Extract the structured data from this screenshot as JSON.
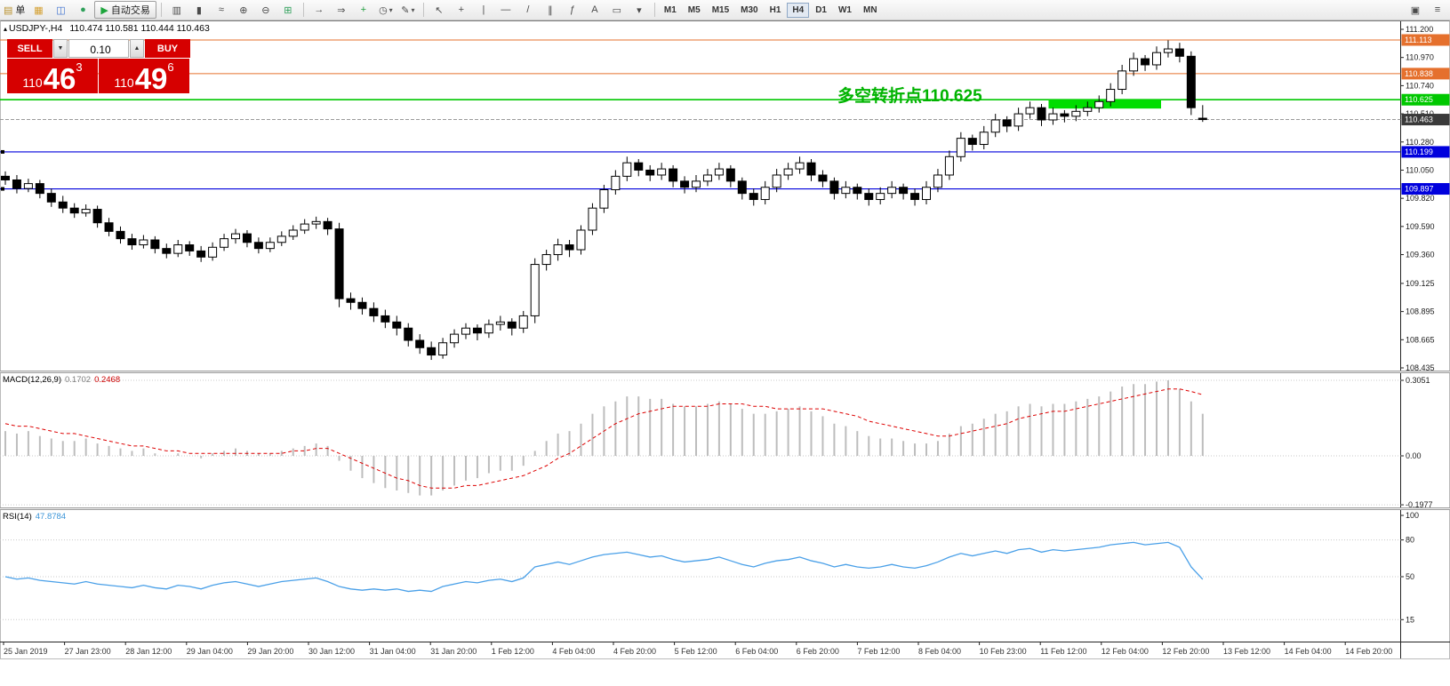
{
  "colors": {
    "panel_red": "#d60000",
    "annotation_green": "#00b300",
    "level_orange": "#e5702d",
    "level_green": "#00c800",
    "level_blue": "#0000dd",
    "current_badge": "#3a3a3a",
    "macd_hist": "#bdbdbd",
    "macd_signal": "#dd0000",
    "rsi_line": "#4aa0e8",
    "bull": "#ffffff",
    "bear": "#000000",
    "highlight": "#00dd00"
  },
  "icons": {
    "chart_marker": "▴",
    "vol_up": "▲",
    "vol_down": "▼",
    "dropdown": "▾"
  },
  "toolbar": {
    "items": [
      {
        "name": "new-order",
        "icon": "▤",
        "icon_color": "#b8902c",
        "label": "单"
      },
      {
        "name": "new-chart",
        "icon": "▦",
        "icon_color": "#d49f2f"
      },
      {
        "name": "profiles",
        "icon": "◫",
        "icon_color": "#3b6fd0"
      },
      {
        "name": "community",
        "icon": "●",
        "icon_color": "#2fa05a"
      },
      {
        "name": "autotrade",
        "icon": "▶",
        "icon_color": "#1da53c",
        "label": "自动交易",
        "style": "raised"
      },
      {
        "sep": true
      },
      {
        "name": "bar-chart",
        "icon": "▥"
      },
      {
        "name": "candlestick-chart",
        "icon": "▮"
      },
      {
        "name": "line-chart",
        "icon": "≈"
      },
      {
        "name": "zoom-in",
        "icon": "⊕"
      },
      {
        "name": "zoom-out",
        "icon": "⊖"
      },
      {
        "name": "tile-windows",
        "icon": "⊞",
        "icon_color": "#2fa05a"
      },
      {
        "sep": true
      },
      {
        "name": "auto-scroll",
        "icon": "→"
      },
      {
        "name": "chart-shift",
        "icon": "⇒"
      },
      {
        "name": "indicators",
        "icon": "+",
        "icon_color": "#1f9e3d"
      },
      {
        "name": "periods",
        "icon": "◷",
        "dropdown": true
      },
      {
        "name": "templates",
        "icon": "✎",
        "dropdown": true
      },
      {
        "sep": true
      },
      {
        "name": "cursor",
        "icon": "↖"
      },
      {
        "name": "crosshair",
        "icon": "+"
      },
      {
        "name": "vertical-line",
        "icon": "|"
      },
      {
        "name": "horizontal-line",
        "icon": "—"
      },
      {
        "name": "trendline",
        "icon": "/"
      },
      {
        "name": "channel",
        "icon": "∥"
      },
      {
        "name": "fibonacci",
        "icon": "ƒ"
      },
      {
        "name": "text",
        "icon": "A"
      },
      {
        "name": "label",
        "icon": "▭"
      },
      {
        "name": "shapes",
        "icon": "▾"
      },
      {
        "sep": true
      }
    ],
    "timeframes": [
      "M1",
      "M5",
      "M15",
      "M30",
      "H1",
      "H4",
      "D1",
      "W1",
      "MN"
    ],
    "active_timeframe": "H4",
    "right_items": [
      {
        "name": "dock",
        "icon": "▣"
      },
      {
        "name": "menu",
        "icon": "≡"
      }
    ]
  },
  "trade_panel": {
    "sell_label": "SELL",
    "buy_label": "BUY",
    "volume": "0.10",
    "bid_main": "110",
    "bid_big": "46",
    "bid_pip": "3",
    "ask_main": "110",
    "ask_big": "49",
    "ask_pip": "6"
  },
  "chart": {
    "symbol_title": "USDJPY-,H4",
    "ohlc": "110.474 110.581 110.444 110.463",
    "annotation_text": "多空转折点110.625"
  },
  "chart_data": {
    "type": "candlestick",
    "symbol": "USDJPY-",
    "timeframe": "H4",
    "current_ohlc": {
      "open": "110.474",
      "high": "110.581",
      "low": "110.444",
      "close": "110.463"
    },
    "price_range": [
      108.435,
      111.2
    ],
    "price_axis_labels": [
      "111.200",
      "110.970",
      "110.740",
      "110.510",
      "110.280",
      "110.050",
      "109.820",
      "109.590",
      "109.360",
      "109.125",
      "108.895",
      "108.665",
      "108.435"
    ],
    "time_axis_labels": [
      "25 Jan 2019",
      "27 Jan 23:00",
      "28 Jan 12:00",
      "29 Jan 04:00",
      "29 Jan 20:00",
      "30 Jan 12:00",
      "31 Jan 04:00",
      "31 Jan 20:00",
      "1 Feb 12:00",
      "4 Feb 04:00",
      "4 Feb 20:00",
      "5 Feb 12:00",
      "6 Feb 04:00",
      "6 Feb 20:00",
      "7 Feb 12:00",
      "8 Feb 04:00",
      "10 Feb 23:00",
      "11 Feb 12:00",
      "12 Feb 04:00",
      "12 Feb 20:00",
      "13 Feb 12:00",
      "14 Feb 04:00",
      "14 Feb 20:00"
    ],
    "levels": [
      {
        "label": "111.113",
        "price": 111.113,
        "color": "#e5702d",
        "handle": false
      },
      {
        "label": "110.838",
        "price": 110.838,
        "color": "#e5702d",
        "handle": false
      },
      {
        "label": "110.625",
        "price": 110.625,
        "color": "#00c800",
        "handle": false
      },
      {
        "label": "110.199",
        "price": 110.199,
        "color": "#0000dd",
        "handle": true
      },
      {
        "label": "109.897",
        "price": 109.897,
        "color": "#0000dd",
        "handle": true
      }
    ],
    "current_price": {
      "label": "110.463",
      "price": 110.463
    },
    "highlight_rect": {
      "start_index": 91,
      "end_index": 100,
      "price_top": 110.625,
      "price_bottom": 110.553
    },
    "candles": [
      [
        110.0,
        110.04,
        109.93,
        109.97
      ],
      [
        109.97,
        110.01,
        109.86,
        109.9
      ],
      [
        109.9,
        109.98,
        109.87,
        109.94
      ],
      [
        109.94,
        109.97,
        109.82,
        109.86
      ],
      [
        109.86,
        109.9,
        109.75,
        109.79
      ],
      [
        109.79,
        109.84,
        109.7,
        109.74
      ],
      [
        109.74,
        109.78,
        109.66,
        109.7
      ],
      [
        109.7,
        109.77,
        109.67,
        109.73
      ],
      [
        109.73,
        109.76,
        109.58,
        109.62
      ],
      [
        109.62,
        109.66,
        109.51,
        109.55
      ],
      [
        109.55,
        109.59,
        109.45,
        109.49
      ],
      [
        109.49,
        109.53,
        109.4,
        109.44
      ],
      [
        109.44,
        109.52,
        109.41,
        109.48
      ],
      [
        109.48,
        109.51,
        109.37,
        109.41
      ],
      [
        109.41,
        109.45,
        109.33,
        109.37
      ],
      [
        109.37,
        109.48,
        109.34,
        109.44
      ],
      [
        109.44,
        109.47,
        109.35,
        109.39
      ],
      [
        109.39,
        109.43,
        109.3,
        109.34
      ],
      [
        109.34,
        109.46,
        109.31,
        109.42
      ],
      [
        109.42,
        109.53,
        109.39,
        109.49
      ],
      [
        109.49,
        109.57,
        109.45,
        109.53
      ],
      [
        109.53,
        109.56,
        109.42,
        109.46
      ],
      [
        109.46,
        109.5,
        109.37,
        109.41
      ],
      [
        109.41,
        109.5,
        109.38,
        109.46
      ],
      [
        109.46,
        109.55,
        109.43,
        109.51
      ],
      [
        109.51,
        109.6,
        109.48,
        109.56
      ],
      [
        109.56,
        109.65,
        109.53,
        109.61
      ],
      [
        109.61,
        109.67,
        109.57,
        109.63
      ],
      [
        109.63,
        109.66,
        109.52,
        109.57
      ],
      [
        109.57,
        109.62,
        108.93,
        109.0
      ],
      [
        109.0,
        109.05,
        108.91,
        108.97
      ],
      [
        108.97,
        109.01,
        108.87,
        108.92
      ],
      [
        108.92,
        108.97,
        108.81,
        108.86
      ],
      [
        108.86,
        108.91,
        108.76,
        108.81
      ],
      [
        108.81,
        108.86,
        108.7,
        108.76
      ],
      [
        108.76,
        108.8,
        108.61,
        108.66
      ],
      [
        108.66,
        108.71,
        108.55,
        108.6
      ],
      [
        108.6,
        108.65,
        108.5,
        108.54
      ],
      [
        108.54,
        108.68,
        108.51,
        108.64
      ],
      [
        108.64,
        108.75,
        108.6,
        108.71
      ],
      [
        108.71,
        108.8,
        108.67,
        108.76
      ],
      [
        108.76,
        108.79,
        108.66,
        108.72
      ],
      [
        108.72,
        108.83,
        108.68,
        108.79
      ],
      [
        108.79,
        108.86,
        108.74,
        108.81
      ],
      [
        108.81,
        108.84,
        108.7,
        108.76
      ],
      [
        108.76,
        108.9,
        108.72,
        108.86
      ],
      [
        108.86,
        109.33,
        108.8,
        109.28
      ],
      [
        109.28,
        109.4,
        109.23,
        109.36
      ],
      [
        109.36,
        109.49,
        109.31,
        109.44
      ],
      [
        109.44,
        109.48,
        109.34,
        109.4
      ],
      [
        109.4,
        109.6,
        109.36,
        109.56
      ],
      [
        109.56,
        109.78,
        109.52,
        109.74
      ],
      [
        109.74,
        109.93,
        109.7,
        109.89
      ],
      [
        109.89,
        110.05,
        109.85,
        110.0
      ],
      [
        110.0,
        110.16,
        109.96,
        110.11
      ],
      [
        110.11,
        110.14,
        110.0,
        110.05
      ],
      [
        110.05,
        110.09,
        109.96,
        110.01
      ],
      [
        110.01,
        110.11,
        109.97,
        110.06
      ],
      [
        110.06,
        110.09,
        109.91,
        109.96
      ],
      [
        109.96,
        110.0,
        109.86,
        109.91
      ],
      [
        109.91,
        110.01,
        109.87,
        109.96
      ],
      [
        109.96,
        110.06,
        109.92,
        110.01
      ],
      [
        110.01,
        110.11,
        109.97,
        110.06
      ],
      [
        110.06,
        110.09,
        109.91,
        109.96
      ],
      [
        109.96,
        109.99,
        109.81,
        109.86
      ],
      [
        109.86,
        109.9,
        109.76,
        109.81
      ],
      [
        109.81,
        109.96,
        109.77,
        109.91
      ],
      [
        109.91,
        110.06,
        109.87,
        110.01
      ],
      [
        110.01,
        110.11,
        109.97,
        110.06
      ],
      [
        110.06,
        110.16,
        110.02,
        110.11
      ],
      [
        110.11,
        110.14,
        109.96,
        110.01
      ],
      [
        110.01,
        110.05,
        109.91,
        109.96
      ],
      [
        109.96,
        109.99,
        109.81,
        109.86
      ],
      [
        109.86,
        109.96,
        109.82,
        109.91
      ],
      [
        109.91,
        109.94,
        109.81,
        109.86
      ],
      [
        109.86,
        109.9,
        109.76,
        109.81
      ],
      [
        109.81,
        109.91,
        109.77,
        109.86
      ],
      [
        109.86,
        109.96,
        109.82,
        109.91
      ],
      [
        109.91,
        109.94,
        109.81,
        109.86
      ],
      [
        109.86,
        109.9,
        109.76,
        109.81
      ],
      [
        109.81,
        109.96,
        109.77,
        109.91
      ],
      [
        109.91,
        110.06,
        109.87,
        110.01
      ],
      [
        110.01,
        110.21,
        109.97,
        110.16
      ],
      [
        110.16,
        110.36,
        110.12,
        110.31
      ],
      [
        110.31,
        110.34,
        110.21,
        110.26
      ],
      [
        110.26,
        110.41,
        110.22,
        110.36
      ],
      [
        110.36,
        110.51,
        110.32,
        110.46
      ],
      [
        110.46,
        110.49,
        110.36,
        110.41
      ],
      [
        110.41,
        110.56,
        110.37,
        110.51
      ],
      [
        110.51,
        110.61,
        110.47,
        110.56
      ],
      [
        110.56,
        110.59,
        110.41,
        110.46
      ],
      [
        110.46,
        110.56,
        110.42,
        110.51
      ],
      [
        110.51,
        110.54,
        110.44,
        110.49
      ],
      [
        110.49,
        110.58,
        110.45,
        110.53
      ],
      [
        110.53,
        110.61,
        110.49,
        110.56
      ],
      [
        110.56,
        110.66,
        110.52,
        110.61
      ],
      [
        110.61,
        110.76,
        110.57,
        110.71
      ],
      [
        110.71,
        110.91,
        110.67,
        110.86
      ],
      [
        110.86,
        111.01,
        110.82,
        110.96
      ],
      [
        110.96,
        110.99,
        110.86,
        110.91
      ],
      [
        110.91,
        111.06,
        110.87,
        111.01
      ],
      [
        111.01,
        111.11,
        110.97,
        111.04
      ],
      [
        111.04,
        111.09,
        110.93,
        110.98
      ],
      [
        110.98,
        111.02,
        110.5,
        110.56
      ],
      [
        110.474,
        110.581,
        110.444,
        110.463
      ]
    ],
    "macd": {
      "label": "MACD(12,26,9)",
      "main": "0.1702",
      "signal": "0.2468",
      "axis": [
        "0.3051",
        "0.00",
        "-0.1977"
      ],
      "hist": [
        0.1,
        0.09,
        0.1,
        0.08,
        0.07,
        0.06,
        0.06,
        0.07,
        0.05,
        0.04,
        0.03,
        0.02,
        0.03,
        0.01,
        0.0,
        0.01,
        0.0,
        -0.01,
        0.01,
        0.02,
        0.03,
        0.02,
        0.01,
        0.01,
        0.02,
        0.03,
        0.04,
        0.05,
        0.04,
        -0.02,
        -0.06,
        -0.09,
        -0.11,
        -0.13,
        -0.14,
        -0.15,
        -0.16,
        -0.16,
        -0.14,
        -0.12,
        -0.1,
        -0.09,
        -0.07,
        -0.06,
        -0.06,
        -0.04,
        0.02,
        0.06,
        0.09,
        0.1,
        0.13,
        0.17,
        0.2,
        0.22,
        0.24,
        0.24,
        0.23,
        0.23,
        0.21,
        0.2,
        0.2,
        0.21,
        0.22,
        0.21,
        0.19,
        0.17,
        0.17,
        0.18,
        0.19,
        0.2,
        0.18,
        0.16,
        0.13,
        0.12,
        0.1,
        0.08,
        0.07,
        0.07,
        0.06,
        0.05,
        0.05,
        0.06,
        0.09,
        0.12,
        0.13,
        0.15,
        0.17,
        0.18,
        0.2,
        0.21,
        0.2,
        0.21,
        0.21,
        0.22,
        0.23,
        0.24,
        0.26,
        0.28,
        0.29,
        0.29,
        0.3,
        0.305,
        0.27,
        0.22,
        0.17
      ],
      "signal_series": [
        0.13,
        0.12,
        0.12,
        0.11,
        0.1,
        0.09,
        0.09,
        0.08,
        0.07,
        0.06,
        0.05,
        0.04,
        0.04,
        0.03,
        0.02,
        0.02,
        0.01,
        0.01,
        0.01,
        0.01,
        0.01,
        0.01,
        0.01,
        0.01,
        0.01,
        0.02,
        0.02,
        0.03,
        0.03,
        0.01,
        -0.01,
        -0.03,
        -0.05,
        -0.07,
        -0.09,
        -0.1,
        -0.12,
        -0.13,
        -0.13,
        -0.13,
        -0.12,
        -0.12,
        -0.11,
        -0.1,
        -0.09,
        -0.08,
        -0.06,
        -0.04,
        -0.01,
        0.01,
        0.04,
        0.07,
        0.1,
        0.13,
        0.15,
        0.17,
        0.18,
        0.19,
        0.2,
        0.2,
        0.2,
        0.2,
        0.21,
        0.21,
        0.21,
        0.2,
        0.2,
        0.19,
        0.19,
        0.19,
        0.19,
        0.19,
        0.18,
        0.17,
        0.16,
        0.14,
        0.13,
        0.12,
        0.11,
        0.1,
        0.09,
        0.08,
        0.08,
        0.09,
        0.1,
        0.11,
        0.12,
        0.13,
        0.15,
        0.16,
        0.17,
        0.18,
        0.18,
        0.19,
        0.2,
        0.21,
        0.22,
        0.23,
        0.24,
        0.25,
        0.26,
        0.27,
        0.27,
        0.26,
        0.2468
      ]
    },
    "rsi": {
      "label": "RSI(14)",
      "value": "47.8784",
      "axis": [
        "100",
        "80",
        "50",
        "15"
      ],
      "grid_levels": [
        80,
        50,
        15
      ],
      "values": [
        50,
        48,
        49,
        47,
        46,
        45,
        44,
        46,
        44,
        43,
        42,
        41,
        43,
        41,
        40,
        43,
        42,
        40,
        43,
        45,
        46,
        44,
        42,
        44,
        46,
        47,
        48,
        49,
        46,
        42,
        40,
        39,
        40,
        39,
        40,
        38,
        39,
        38,
        42,
        44,
        46,
        45,
        47,
        48,
        46,
        49,
        58,
        60,
        62,
        60,
        63,
        66,
        68,
        69,
        70,
        68,
        66,
        67,
        64,
        62,
        63,
        64,
        66,
        63,
        60,
        58,
        61,
        63,
        64,
        66,
        63,
        61,
        58,
        60,
        58,
        57,
        58,
        60,
        58,
        57,
        59,
        62,
        66,
        69,
        67,
        69,
        71,
        69,
        72,
        73,
        70,
        72,
        71,
        72,
        73,
        74,
        76,
        77,
        78,
        76,
        77,
        78,
        74,
        58,
        47.88
      ]
    }
  }
}
